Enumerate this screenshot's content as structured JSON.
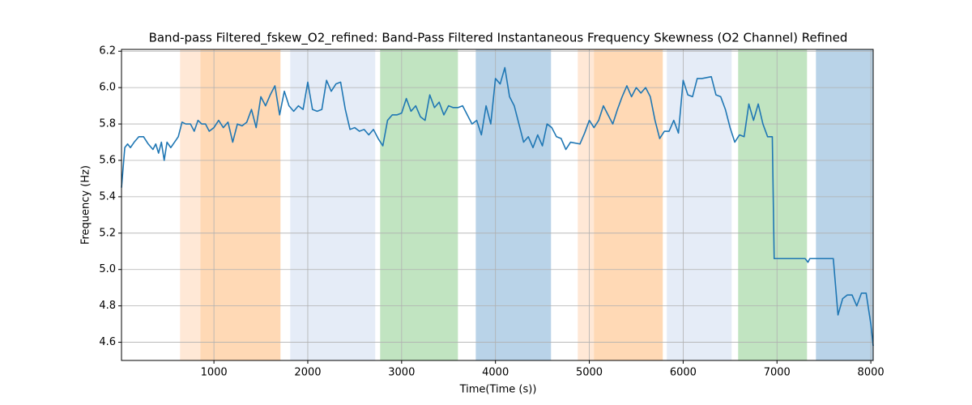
{
  "chart_data": {
    "type": "line",
    "title": "Band-pass Filtered_fskew_O2_refined: Band-Pass Filtered Instantaneous Frequency Skewness (O2 Channel) Refined",
    "x_label": "Time(Time (s))",
    "y_label": "Frequency (Hz)",
    "xlim": [
      15,
      8025
    ],
    "ylim": [
      4.5,
      6.21
    ],
    "xticks": [
      1000,
      2000,
      3000,
      4000,
      5000,
      6000,
      7000,
      8000
    ],
    "yticks": [
      4.6,
      4.8,
      {
        "value": 5,
        "label": "5.0"
      },
      5.2,
      5.4,
      5.6,
      5.8,
      {
        "value": 6,
        "label": "6.0"
      },
      6.2
    ],
    "grid": true,
    "spans": [
      {
        "start": 639,
        "end": 855,
        "color": "#ffe8d6"
      },
      {
        "start": 855,
        "end": 1709,
        "color": "#ffd9b5"
      },
      {
        "start": 1813,
        "end": 2719,
        "color": "#e5ecf7"
      },
      {
        "start": 2771,
        "end": 3600,
        "color": "#c1e4c1"
      },
      {
        "start": 3790,
        "end": 4592,
        "color": "#b9d3e8"
      },
      {
        "start": 4877,
        "end": 5049,
        "color": "#ffe8d6"
      },
      {
        "start": 5049,
        "end": 5783,
        "color": "#ffd9b5"
      },
      {
        "start": 5826,
        "end": 6517,
        "color": "#e5ecf7"
      },
      {
        "start": 6586,
        "end": 7320,
        "color": "#c1e4c1"
      },
      {
        "start": 7415,
        "end": 8025,
        "color": "#b9d3e8"
      }
    ],
    "x": [
      15,
      50,
      80,
      110,
      150,
      200,
      250,
      300,
      350,
      380,
      410,
      440,
      470,
      500,
      540,
      580,
      620,
      660,
      700,
      750,
      790,
      830,
      870,
      910,
      950,
      1000,
      1050,
      1100,
      1150,
      1200,
      1250,
      1300,
      1350,
      1400,
      1450,
      1500,
      1550,
      1600,
      1650,
      1700,
      1750,
      1800,
      1850,
      1900,
      1950,
      2000,
      2050,
      2100,
      2150,
      2200,
      2250,
      2300,
      2350,
      2400,
      2450,
      2500,
      2550,
      2600,
      2650,
      2700,
      2750,
      2800,
      2850,
      2900,
      2950,
      3000,
      3050,
      3100,
      3150,
      3200,
      3250,
      3300,
      3350,
      3400,
      3450,
      3500,
      3550,
      3600,
      3650,
      3700,
      3750,
      3800,
      3850,
      3900,
      3950,
      4000,
      4050,
      4100,
      4150,
      4200,
      4250,
      4300,
      4350,
      4400,
      4450,
      4500,
      4550,
      4600,
      4650,
      4700,
      4750,
      4800,
      4900,
      4950,
      5000,
      5050,
      5100,
      5150,
      5200,
      5250,
      5300,
      5350,
      5400,
      5450,
      5500,
      5550,
      5600,
      5650,
      5700,
      5750,
      5800,
      5850,
      5900,
      5950,
      6000,
      6050,
      6100,
      6150,
      6200,
      6300,
      6350,
      6400,
      6450,
      6500,
      6550,
      6600,
      6650,
      6700,
      6750,
      6800,
      6850,
      6900,
      6950,
      6970,
      7100,
      7300,
      7330,
      7350,
      7500,
      7600,
      7650,
      7700,
      7750,
      7800,
      7850,
      7900,
      7950,
      8000,
      8025
    ],
    "series": [
      {
        "color": "#1f77b4",
        "values": [
          5.45,
          5.67,
          5.69,
          5.67,
          5.7,
          5.73,
          5.73,
          5.69,
          5.66,
          5.69,
          5.64,
          5.7,
          5.6,
          5.7,
          5.67,
          5.7,
          5.73,
          5.81,
          5.8,
          5.8,
          5.76,
          5.82,
          5.8,
          5.8,
          5.76,
          5.78,
          5.82,
          5.78,
          5.81,
          5.7,
          5.8,
          5.79,
          5.81,
          5.88,
          5.78,
          5.95,
          5.9,
          5.96,
          6.01,
          5.85,
          5.98,
          5.9,
          5.87,
          5.9,
          5.88,
          6.03,
          5.88,
          5.87,
          5.88,
          6.04,
          5.98,
          6.02,
          6.03,
          5.88,
          5.77,
          5.78,
          5.76,
          5.77,
          5.74,
          5.77,
          5.72,
          5.68,
          5.82,
          5.85,
          5.85,
          5.86,
          5.94,
          5.87,
          5.9,
          5.84,
          5.82,
          5.96,
          5.89,
          5.92,
          5.85,
          5.9,
          5.89,
          5.89,
          5.9,
          5.85,
          5.8,
          5.82,
          5.74,
          5.9,
          5.8,
          6.05,
          6.02,
          6.11,
          5.95,
          5.9,
          5.8,
          5.7,
          5.73,
          5.67,
          5.74,
          5.68,
          5.8,
          5.78,
          5.73,
          5.72,
          5.66,
          5.7,
          5.69,
          5.75,
          5.82,
          5.78,
          5.82,
          5.9,
          5.85,
          5.8,
          5.88,
          5.95,
          6.01,
          5.95,
          6.0,
          5.97,
          6.0,
          5.95,
          5.82,
          5.72,
          5.76,
          5.76,
          5.82,
          5.75,
          6.04,
          5.96,
          5.95,
          6.05,
          6.05,
          6.06,
          5.96,
          5.95,
          5.88,
          5.78,
          5.7,
          5.74,
          5.73,
          5.91,
          5.82,
          5.91,
          5.8,
          5.73,
          5.73,
          5.06,
          5.06,
          5.06,
          5.04,
          5.06,
          5.06,
          5.06,
          4.75,
          4.84,
          4.86,
          4.86,
          4.8,
          4.87,
          4.87,
          4.7,
          4.58
        ]
      }
    ]
  }
}
